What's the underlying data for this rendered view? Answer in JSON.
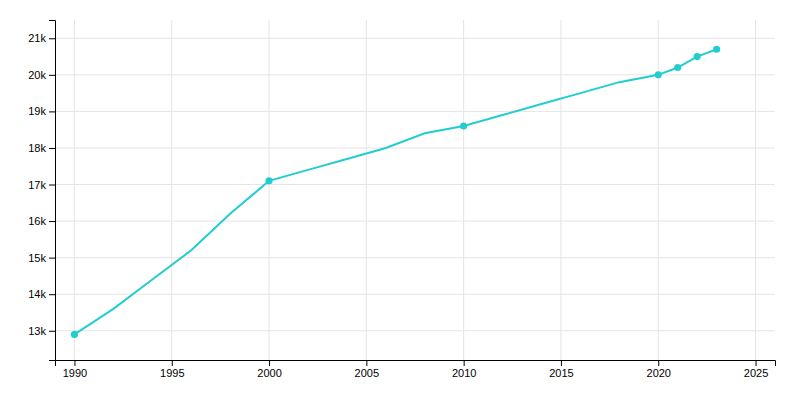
{
  "chart_data": {
    "type": "line",
    "series": [
      {
        "type": "line",
        "color": "#22CDD0",
        "x": [
          1990,
          1992,
          1994,
          1996,
          1998,
          2000,
          2002,
          2004,
          2006,
          2008,
          2010,
          2012,
          2014,
          2016,
          2018,
          2020,
          2021,
          2022,
          2023
        ],
        "values": [
          12900,
          13600,
          14400,
          15200,
          16200,
          17100,
          17400,
          17700,
          18000,
          18400,
          18600,
          18900,
          19200,
          19500,
          19800,
          20000,
          20200,
          20500,
          20700
        ]
      },
      {
        "type": "scatter",
        "color": "#22CDD0",
        "marker": "circle",
        "x": [
          1990,
          2000,
          2010,
          2020,
          2021,
          2022,
          2023
        ],
        "values": [
          12900,
          17100,
          18600,
          20000,
          20200,
          20500,
          20700
        ]
      }
    ],
    "xlim": [
      1989,
      2026
    ],
    "ylim": [
      12200,
      21500
    ],
    "xticks": [
      1990,
      1995,
      2000,
      2005,
      2010,
      2015,
      2020,
      2025
    ],
    "yticks": [
      {
        "value": 13000,
        "label": "13k"
      },
      {
        "value": 14000,
        "label": "14k"
      },
      {
        "value": 15000,
        "label": "15k"
      },
      {
        "value": 16000,
        "label": "16k"
      },
      {
        "value": 17000,
        "label": "17k"
      },
      {
        "value": 18000,
        "label": "18k"
      },
      {
        "value": 19000,
        "label": "19k"
      },
      {
        "value": 20000,
        "label": "20k"
      },
      {
        "value": 21000,
        "label": "21k"
      }
    ],
    "grid": true
  }
}
